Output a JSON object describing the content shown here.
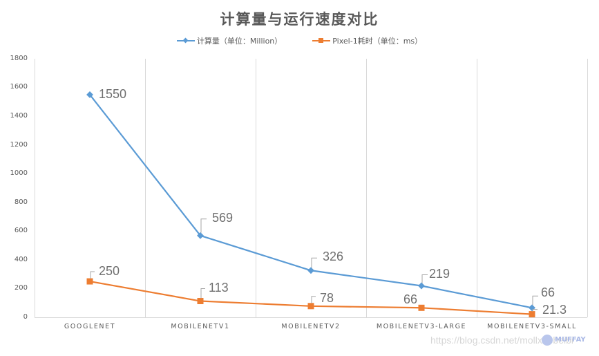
{
  "chart_data": {
    "type": "line",
    "title": "计算量与运行速度对比",
    "categories": [
      "GOOGLENET",
      "MOBILENETV1",
      "MOBILENETV2",
      "MOBILENETV3-LARGE",
      "MOBILENETV3-SMALL"
    ],
    "series": [
      {
        "name": "计算量（单位：Million）",
        "color": "#5b9bd5",
        "marker": "diamond",
        "values": [
          1550,
          569,
          326,
          219,
          66
        ]
      },
      {
        "name": "Pixel-1耗时（单位：ms）",
        "color": "#ed7d31",
        "marker": "square",
        "values": [
          250,
          113,
          78,
          66,
          21.3
        ]
      }
    ],
    "xlabel": "",
    "ylabel": "",
    "ylim": [
      0,
      1800
    ],
    "yticks": [
      0,
      200,
      400,
      600,
      800,
      1000,
      1200,
      1400,
      1600,
      1800
    ],
    "grid": "vertical category separators",
    "legend_position": "top",
    "data_labels": true
  },
  "labels": {
    "title": "计算量与运行速度对比",
    "legend": [
      "计算量（单位：Million）",
      "Pixel-1耗时（单位：ms）"
    ],
    "yticks": [
      "0",
      "200",
      "400",
      "600",
      "800",
      "1000",
      "1200",
      "1400",
      "1600",
      "1800"
    ],
    "xticks": [
      "GOOGLENET",
      "MOBILENETV1",
      "MOBILENETV2",
      "MOBILENETV3-LARGE",
      "MOBILENETV3-SMALL"
    ],
    "series0_labels": [
      "1550",
      "569",
      "326",
      "219",
      "66"
    ],
    "series1_labels": [
      "250",
      "113",
      "78",
      "66",
      "21.3"
    ]
  },
  "watermark": {
    "url": "https://blog.csdn.net/mollxuebeibi",
    "brand": "MUFFAY"
  }
}
